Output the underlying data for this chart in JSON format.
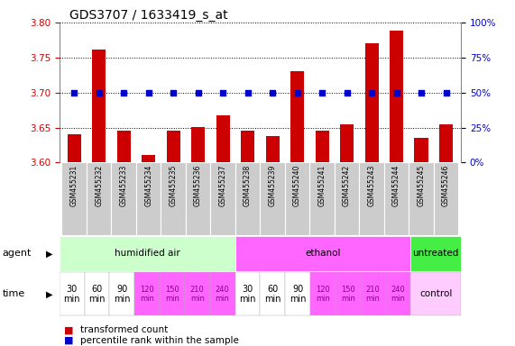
{
  "title": "GDS3707 / 1633419_s_at",
  "samples": [
    "GSM455231",
    "GSM455232",
    "GSM455233",
    "GSM455234",
    "GSM455235",
    "GSM455236",
    "GSM455237",
    "GSM455238",
    "GSM455239",
    "GSM455240",
    "GSM455241",
    "GSM455242",
    "GSM455243",
    "GSM455244",
    "GSM455245",
    "GSM455246"
  ],
  "bar_values": [
    3.64,
    3.762,
    3.645,
    3.611,
    3.645,
    3.651,
    3.667,
    3.645,
    3.638,
    3.731,
    3.645,
    3.655,
    3.771,
    3.789,
    3.635,
    3.655
  ],
  "percentile_values": [
    50,
    50,
    50,
    50,
    50,
    50,
    50,
    50,
    50,
    50,
    50,
    50,
    50,
    50,
    50,
    50
  ],
  "bar_color": "#cc0000",
  "percentile_color": "#0000cc",
  "ylim_left": [
    3.6,
    3.8
  ],
  "ylim_right": [
    0,
    100
  ],
  "yticks_left": [
    3.6,
    3.65,
    3.7,
    3.75,
    3.8
  ],
  "yticks_right": [
    0,
    25,
    50,
    75,
    100
  ],
  "agent_groups": [
    {
      "label": "humidified air",
      "start": 0,
      "end": 7,
      "color": "#ccffcc"
    },
    {
      "label": "ethanol",
      "start": 7,
      "end": 14,
      "color": "#ff66ff"
    },
    {
      "label": "untreated",
      "start": 14,
      "end": 16,
      "color": "#44ee44"
    }
  ],
  "time_labels": [
    "30\nmin",
    "60\nmin",
    "90\nmin",
    "120\nmin",
    "150\nmin",
    "210\nmin",
    "240\nmin",
    "30\nmin",
    "60\nmin",
    "90\nmin",
    "120\nmin",
    "150\nmin",
    "210\nmin",
    "240\nmin"
  ],
  "time_colors_white_idx": [
    0,
    1,
    2,
    7,
    8,
    9
  ],
  "time_colors_pink_idx": [
    3,
    4,
    5,
    6,
    10,
    11,
    12,
    13
  ],
  "time_color_white": "#ffffff",
  "time_color_pink": "#ff66ff",
  "control_label": "control",
  "control_color": "#ffccff",
  "legend_bar_label": "transformed count",
  "legend_pct_label": "percentile rank within the sample",
  "label_color_left": "#cc0000",
  "label_color_right": "#0000cc",
  "background_color": "#ffffff",
  "sample_bg_color": "#cccccc",
  "grid_linestyle": "dotted",
  "title_fontsize": 10,
  "tick_fontsize": 7.5,
  "sample_fontsize": 5.5,
  "time_fontsize_large": 7,
  "time_fontsize_small": 6
}
